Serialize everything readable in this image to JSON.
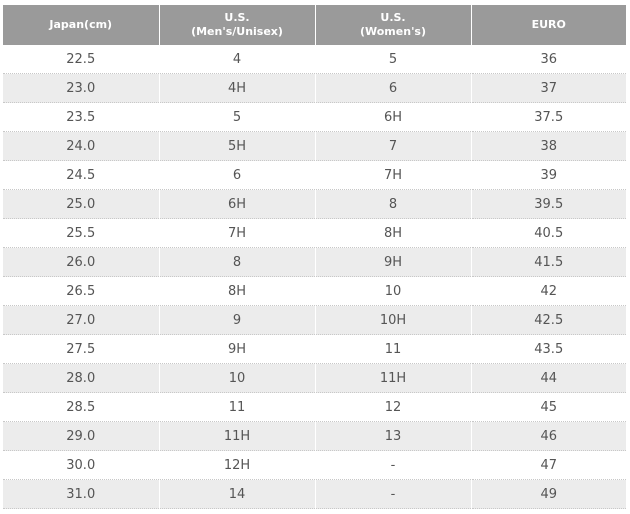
{
  "header": {
    "col1": {
      "line1": "Japan(cm)",
      "line2": ""
    },
    "col2": {
      "line1": "U.S.",
      "line2": "(Men's/Unisex)"
    },
    "col3": {
      "line1": "U.S.",
      "line2": "(Women's)"
    },
    "col4": {
      "line1": "EURO",
      "line2": ""
    }
  },
  "rows": [
    [
      "22.5",
      "4",
      "5",
      "36"
    ],
    [
      "23.0",
      "4H",
      "6",
      "37"
    ],
    [
      "23.5",
      "5",
      "6H",
      "37.5"
    ],
    [
      "24.0",
      "5H",
      "7",
      "38"
    ],
    [
      "24.5",
      "6",
      "7H",
      "39"
    ],
    [
      "25.0",
      "6H",
      "8",
      "39.5"
    ],
    [
      "25.5",
      "7H",
      "8H",
      "40.5"
    ],
    [
      "26.0",
      "8",
      "9H",
      "41.5"
    ],
    [
      "26.5",
      "8H",
      "10",
      "42"
    ],
    [
      "27.0",
      "9",
      "10H",
      "42.5"
    ],
    [
      "27.5",
      "9H",
      "11",
      "43.5"
    ],
    [
      "28.0",
      "10",
      "11H",
      "44"
    ],
    [
      "28.5",
      "11",
      "12",
      "45"
    ],
    [
      "29.0",
      "11H",
      "13",
      "46"
    ],
    [
      "30.0",
      "12H",
      "-",
      "47"
    ],
    [
      "31.0",
      "14",
      "-",
      "49"
    ]
  ]
}
